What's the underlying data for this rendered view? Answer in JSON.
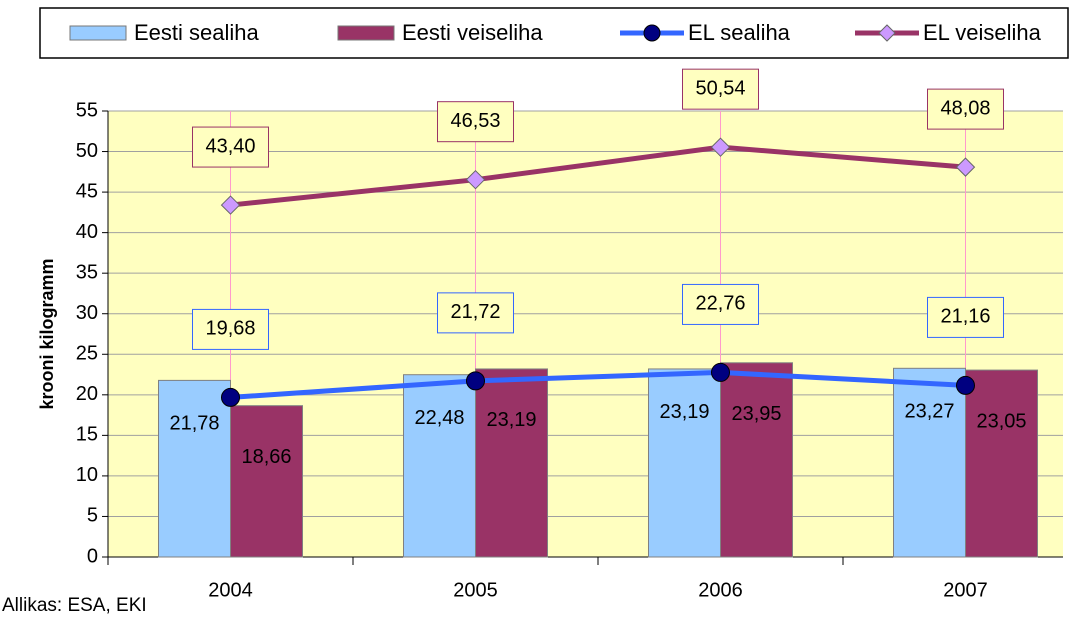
{
  "chart_data": {
    "type": "bar_line",
    "y_label": "krooni kilogramm",
    "source": "Allikas: ESA, EKI",
    "categories": [
      "2004",
      "2005",
      "2006",
      "2007"
    ],
    "ylim": [
      0,
      55
    ],
    "yticks": [
      0,
      5,
      10,
      15,
      20,
      25,
      30,
      35,
      40,
      45,
      50,
      55
    ],
    "grid": true,
    "series": [
      {
        "name": "Eesti sealiha",
        "type": "bar",
        "color": "#99ccff",
        "values": [
          21.78,
          22.48,
          23.19,
          23.27
        ],
        "value_labels": [
          "21,78",
          "22,48",
          "23,19",
          "23,27"
        ]
      },
      {
        "name": "Eesti veiseliha",
        "type": "bar",
        "color": "#993366",
        "values": [
          18.66,
          23.19,
          23.95,
          23.05
        ],
        "value_labels": [
          "18,66",
          "23,19",
          "23,95",
          "23,05"
        ]
      },
      {
        "name": "EL sealiha",
        "type": "line",
        "color": "#3366ff",
        "marker_color": "#000080",
        "values": [
          19.68,
          21.72,
          22.76,
          21.16
        ],
        "value_labels": [
          "19,68",
          "21,72",
          "22,76",
          "21,16"
        ]
      },
      {
        "name": "EL veiseliha",
        "type": "line",
        "color": "#993366",
        "marker_color": "#cc99ff",
        "values": [
          43.4,
          46.53,
          50.54,
          48.08
        ],
        "value_labels": [
          "43,40",
          "46,53",
          "50,54",
          "48,08"
        ]
      }
    ]
  }
}
